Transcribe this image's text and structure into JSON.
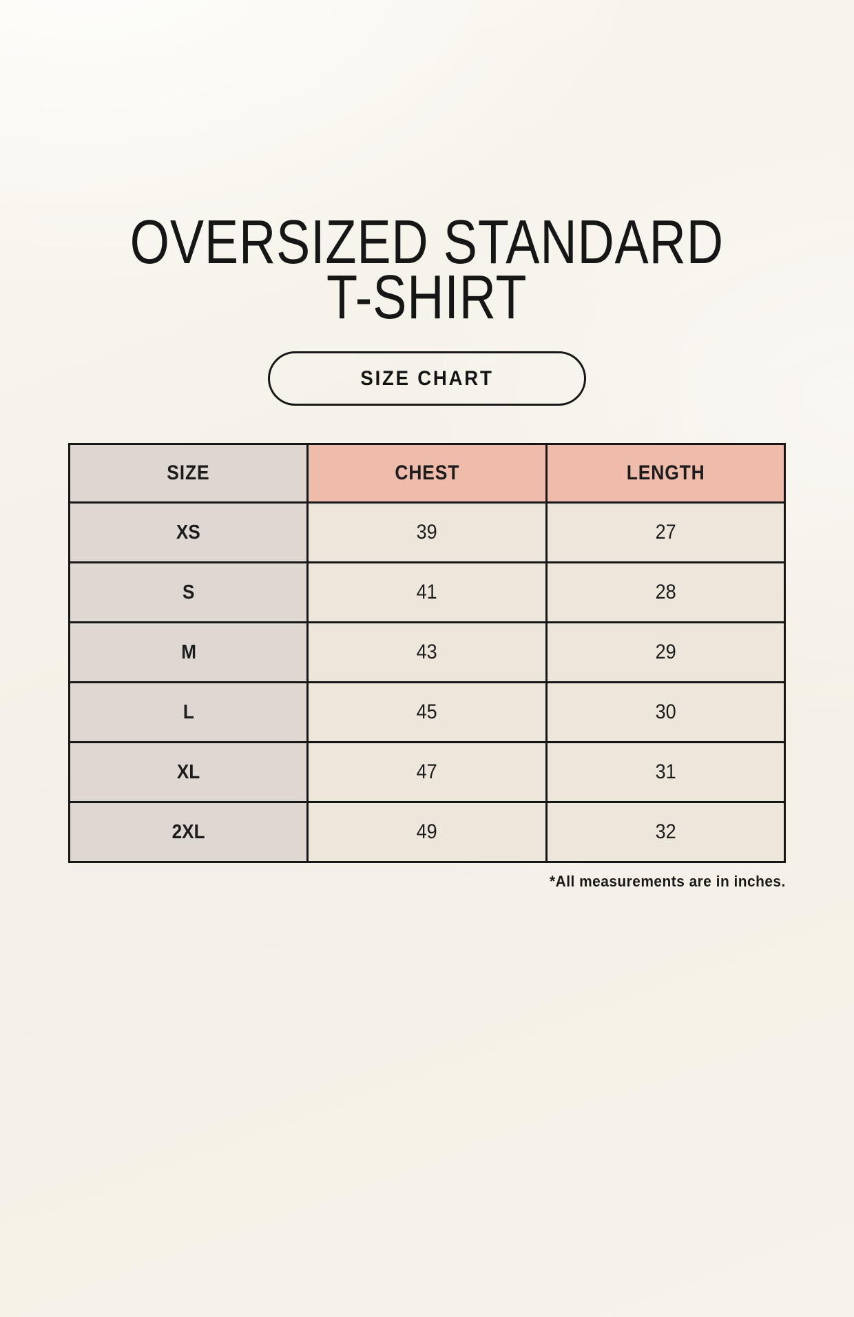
{
  "page": {
    "title_line1": "OVERSIZED STANDARD",
    "title_line2": "T-SHIRT",
    "size_chart_button_label": "SIZE CHART",
    "footnote": "*All measurements are in inches."
  },
  "colors": {
    "background": "#f6f2e9",
    "header_size_bg": "#ddd6d1",
    "header_measure_bg": "#efbcab",
    "row_label_bg": "#ded7d2",
    "value_cell_bg": "#ece6db",
    "border": "#171717",
    "text": "#1c1c1c"
  },
  "chart_data": {
    "type": "table",
    "title": "OVERSIZED STANDARD T-SHIRT",
    "units": "inches",
    "columns": [
      "SIZE",
      "CHEST",
      "LENGTH"
    ],
    "rows": [
      {
        "size": "XS",
        "chest": 39,
        "length": 27
      },
      {
        "size": "S",
        "chest": 41,
        "length": 28
      },
      {
        "size": "M",
        "chest": 43,
        "length": 29
      },
      {
        "size": "L",
        "chest": 45,
        "length": 30
      },
      {
        "size": "XL",
        "chest": 47,
        "length": 31
      },
      {
        "size": "2XL",
        "chest": 49,
        "length": 32
      }
    ]
  }
}
